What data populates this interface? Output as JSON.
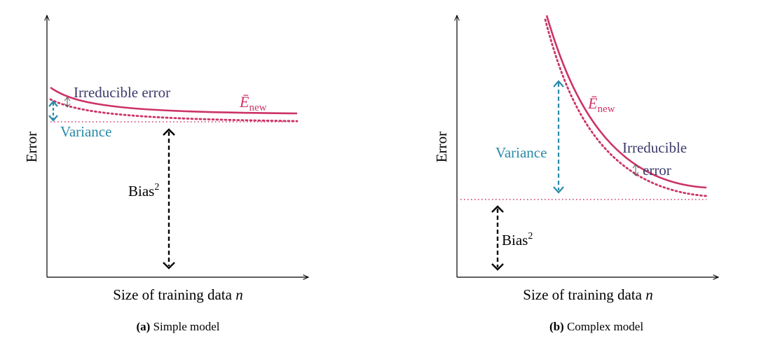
{
  "panel_a": {
    "ylabel": "Error",
    "xlabel_text": "Size of training data ",
    "xlabel_var": "n",
    "curve_label_base": "Ē",
    "curve_label_sub": "new",
    "irreducible_label": "Irreducible error",
    "variance_label": "Variance",
    "bias_label_base": "Bias",
    "bias_label_sup": "2",
    "caption_bold": "(a)",
    "caption_text": " Simple model"
  },
  "panel_b": {
    "ylabel": "Error",
    "xlabel_text": "Size of training data ",
    "xlabel_var": "n",
    "curve_label_base": "Ē",
    "curve_label_sub": "new",
    "irreducible_label_line1": "Irreducible",
    "irreducible_label_line2": "error",
    "variance_label": "Variance",
    "bias_label_base": "Bias",
    "bias_label_sup": "2",
    "caption_bold": "(b)",
    "caption_text": " Complex model"
  },
  "colors": {
    "curve": "#cc3366",
    "variance": "#2a8aa8",
    "irreducible": "#3d3a6b",
    "bias": "#000000",
    "axis": "#000000"
  }
}
